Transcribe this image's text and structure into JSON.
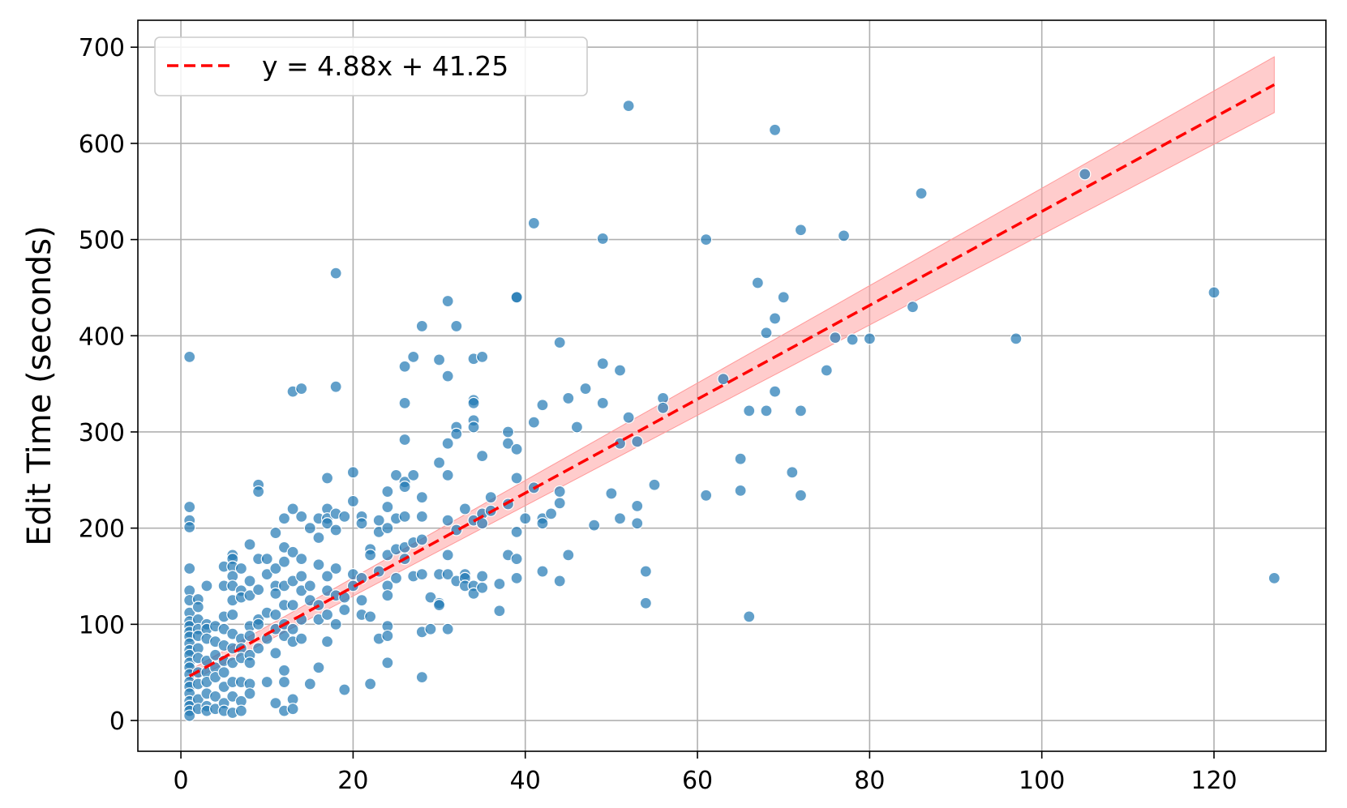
{
  "chart_data": {
    "type": "scatter",
    "title": "",
    "xlabel": "",
    "ylabel": "Edit Time (seconds)",
    "xlim": [
      -5,
      133
    ],
    "ylim": [
      -32,
      728
    ],
    "xticks": [
      0,
      20,
      40,
      60,
      80,
      100,
      120
    ],
    "yticks": [
      0,
      100,
      200,
      300,
      400,
      500,
      600,
      700
    ],
    "grid": true,
    "legend_position": "top-left",
    "colors": {
      "points": "#1f77b4",
      "fit_line": "#ff0000",
      "band": "#ff9999",
      "grid": "#b0b0b0"
    },
    "fit": {
      "label": "y = 4.88x + 41.25",
      "slope": 4.88,
      "intercept": 41.25,
      "x_range": [
        1,
        127
      ],
      "band_halfwidth_start": 6,
      "band_halfwidth_end": 29
    },
    "points": [
      [
        1,
        378
      ],
      [
        1,
        222
      ],
      [
        1,
        208
      ],
      [
        1,
        201
      ],
      [
        1,
        158
      ],
      [
        1,
        135
      ],
      [
        1,
        125
      ],
      [
        1,
        112
      ],
      [
        1,
        103
      ],
      [
        1,
        98
      ],
      [
        1,
        92
      ],
      [
        1,
        87
      ],
      [
        1,
        80
      ],
      [
        1,
        73
      ],
      [
        1,
        68
      ],
      [
        1,
        60
      ],
      [
        1,
        55
      ],
      [
        1,
        48
      ],
      [
        1,
        40
      ],
      [
        1,
        35
      ],
      [
        1,
        28
      ],
      [
        1,
        20
      ],
      [
        1,
        15
      ],
      [
        1,
        10
      ],
      [
        1,
        5
      ],
      [
        2,
        126
      ],
      [
        2,
        118
      ],
      [
        2,
        105
      ],
      [
        2,
        95
      ],
      [
        2,
        88
      ],
      [
        2,
        75
      ],
      [
        2,
        65
      ],
      [
        2,
        50
      ],
      [
        2,
        38
      ],
      [
        2,
        22
      ],
      [
        2,
        12
      ],
      [
        3,
        140
      ],
      [
        3,
        100
      ],
      [
        3,
        95
      ],
      [
        3,
        85
      ],
      [
        3,
        62
      ],
      [
        3,
        50
      ],
      [
        3,
        40
      ],
      [
        3,
        28
      ],
      [
        3,
        15
      ],
      [
        3,
        10
      ],
      [
        4,
        98
      ],
      [
        4,
        82
      ],
      [
        4,
        68
      ],
      [
        4,
        55
      ],
      [
        4,
        45
      ],
      [
        4,
        25
      ],
      [
        4,
        12
      ],
      [
        5,
        160
      ],
      [
        5,
        140
      ],
      [
        5,
        108
      ],
      [
        5,
        95
      ],
      [
        5,
        78
      ],
      [
        5,
        62
      ],
      [
        5,
        50
      ],
      [
        5,
        35
      ],
      [
        5,
        18
      ],
      [
        5,
        10
      ],
      [
        6,
        172
      ],
      [
        6,
        168
      ],
      [
        6,
        160
      ],
      [
        6,
        150
      ],
      [
        6,
        140
      ],
      [
        6,
        125
      ],
      [
        6,
        110
      ],
      [
        6,
        90
      ],
      [
        6,
        75
      ],
      [
        6,
        60
      ],
      [
        6,
        40
      ],
      [
        6,
        25
      ],
      [
        6,
        8
      ],
      [
        7,
        158
      ],
      [
        7,
        135
      ],
      [
        7,
        128
      ],
      [
        7,
        85
      ],
      [
        7,
        75
      ],
      [
        7,
        65
      ],
      [
        7,
        40
      ],
      [
        7,
        20
      ],
      [
        7,
        10
      ],
      [
        8,
        183
      ],
      [
        8,
        145
      ],
      [
        8,
        130
      ],
      [
        8,
        98
      ],
      [
        8,
        88
      ],
      [
        8,
        68
      ],
      [
        8,
        60
      ],
      [
        8,
        38
      ],
      [
        8,
        28
      ],
      [
        9,
        245
      ],
      [
        9,
        238
      ],
      [
        9,
        168
      ],
      [
        9,
        136
      ],
      [
        9,
        105
      ],
      [
        9,
        100
      ],
      [
        9,
        75
      ],
      [
        10,
        168
      ],
      [
        10,
        152
      ],
      [
        10,
        112
      ],
      [
        10,
        85
      ],
      [
        10,
        40
      ],
      [
        11,
        195
      ],
      [
        11,
        158
      ],
      [
        11,
        140
      ],
      [
        11,
        132
      ],
      [
        11,
        110
      ],
      [
        11,
        95
      ],
      [
        11,
        70
      ],
      [
        11,
        18
      ],
      [
        12,
        210
      ],
      [
        12,
        180
      ],
      [
        12,
        165
      ],
      [
        12,
        140
      ],
      [
        12,
        120
      ],
      [
        12,
        100
      ],
      [
        12,
        88
      ],
      [
        12,
        52
      ],
      [
        12,
        40
      ],
      [
        12,
        10
      ],
      [
        13,
        342
      ],
      [
        13,
        220
      ],
      [
        13,
        175
      ],
      [
        13,
        145
      ],
      [
        13,
        120
      ],
      [
        13,
        95
      ],
      [
        13,
        82
      ],
      [
        13,
        22
      ],
      [
        13,
        12
      ],
      [
        14,
        345
      ],
      [
        14,
        212
      ],
      [
        14,
        168
      ],
      [
        14,
        150
      ],
      [
        14,
        135
      ],
      [
        14,
        105
      ],
      [
        14,
        85
      ],
      [
        15,
        200
      ],
      [
        15,
        140
      ],
      [
        15,
        125
      ],
      [
        15,
        38
      ],
      [
        16,
        210
      ],
      [
        16,
        190
      ],
      [
        16,
        162
      ],
      [
        16,
        120
      ],
      [
        16,
        105
      ],
      [
        16,
        55
      ],
      [
        17,
        252
      ],
      [
        17,
        220
      ],
      [
        17,
        210
      ],
      [
        17,
        205
      ],
      [
        17,
        150
      ],
      [
        17,
        135
      ],
      [
        17,
        110
      ],
      [
        17,
        82
      ],
      [
        18,
        465
      ],
      [
        18,
        347
      ],
      [
        18,
        215
      ],
      [
        18,
        198
      ],
      [
        18,
        158
      ],
      [
        18,
        130
      ],
      [
        18,
        100
      ],
      [
        19,
        212
      ],
      [
        19,
        128
      ],
      [
        19,
        115
      ],
      [
        19,
        32
      ],
      [
        20,
        258
      ],
      [
        20,
        228
      ],
      [
        20,
        152
      ],
      [
        20,
        140
      ],
      [
        21,
        212
      ],
      [
        21,
        205
      ],
      [
        21,
        148
      ],
      [
        21,
        125
      ],
      [
        21,
        110
      ],
      [
        22,
        178
      ],
      [
        22,
        172
      ],
      [
        22,
        108
      ],
      [
        22,
        38
      ],
      [
        23,
        208
      ],
      [
        23,
        196
      ],
      [
        23,
        155
      ],
      [
        23,
        85
      ],
      [
        24,
        238
      ],
      [
        24,
        222
      ],
      [
        24,
        200
      ],
      [
        24,
        172
      ],
      [
        24,
        140
      ],
      [
        24,
        130
      ],
      [
        24,
        98
      ],
      [
        24,
        88
      ],
      [
        24,
        60
      ],
      [
        25,
        255
      ],
      [
        25,
        210
      ],
      [
        25,
        178
      ],
      [
        25,
        148
      ],
      [
        26,
        368
      ],
      [
        26,
        330
      ],
      [
        26,
        292
      ],
      [
        26,
        248
      ],
      [
        26,
        243
      ],
      [
        26,
        212
      ],
      [
        26,
        180
      ],
      [
        26,
        168
      ],
      [
        27,
        378
      ],
      [
        27,
        255
      ],
      [
        27,
        185
      ],
      [
        27,
        150
      ],
      [
        28,
        410
      ],
      [
        28,
        232
      ],
      [
        28,
        212
      ],
      [
        28,
        188
      ],
      [
        28,
        152
      ],
      [
        28,
        92
      ],
      [
        28,
        45
      ],
      [
        29,
        128
      ],
      [
        29,
        95
      ],
      [
        30,
        375
      ],
      [
        30,
        268
      ],
      [
        30,
        152
      ],
      [
        30,
        122
      ],
      [
        30,
        120
      ],
      [
        31,
        436
      ],
      [
        31,
        358
      ],
      [
        31,
        288
      ],
      [
        31,
        255
      ],
      [
        31,
        208
      ],
      [
        31,
        172
      ],
      [
        31,
        152
      ],
      [
        31,
        95
      ],
      [
        32,
        410
      ],
      [
        32,
        305
      ],
      [
        32,
        298
      ],
      [
        32,
        198
      ],
      [
        32,
        145
      ],
      [
        33,
        220
      ],
      [
        33,
        152
      ],
      [
        33,
        148
      ],
      [
        33,
        140
      ],
      [
        34,
        376
      ],
      [
        34,
        333
      ],
      [
        34,
        330
      ],
      [
        34,
        312
      ],
      [
        34,
        305
      ],
      [
        34,
        208
      ],
      [
        34,
        140
      ],
      [
        34,
        132
      ],
      [
        35,
        378
      ],
      [
        35,
        275
      ],
      [
        35,
        215
      ],
      [
        35,
        205
      ],
      [
        35,
        150
      ],
      [
        35,
        138
      ],
      [
        36,
        232
      ],
      [
        36,
        218
      ],
      [
        37,
        142
      ],
      [
        37,
        114
      ],
      [
        38,
        300
      ],
      [
        38,
        288
      ],
      [
        38,
        225
      ],
      [
        38,
        172
      ],
      [
        39,
        440
      ],
      [
        39,
        440
      ],
      [
        39,
        282
      ],
      [
        39,
        252
      ],
      [
        39,
        196
      ],
      [
        39,
        168
      ],
      [
        39,
        148
      ],
      [
        40,
        210
      ],
      [
        41,
        517
      ],
      [
        41,
        310
      ],
      [
        41,
        242
      ],
      [
        42,
        328
      ],
      [
        42,
        210
      ],
      [
        42,
        205
      ],
      [
        42,
        155
      ],
      [
        43,
        215
      ],
      [
        44,
        393
      ],
      [
        44,
        238
      ],
      [
        44,
        226
      ],
      [
        44,
        145
      ],
      [
        45,
        335
      ],
      [
        45,
        172
      ],
      [
        46,
        305
      ],
      [
        47,
        345
      ],
      [
        48,
        203
      ],
      [
        49,
        501
      ],
      [
        49,
        371
      ],
      [
        49,
        330
      ],
      [
        50,
        236
      ],
      [
        51,
        364
      ],
      [
        51,
        288
      ],
      [
        51,
        210
      ],
      [
        52,
        639
      ],
      [
        52,
        315
      ],
      [
        53,
        290
      ],
      [
        53,
        223
      ],
      [
        53,
        205
      ],
      [
        54,
        155
      ],
      [
        54,
        122
      ],
      [
        55,
        245
      ],
      [
        56,
        335
      ],
      [
        56,
        325
      ],
      [
        61,
        500
      ],
      [
        61,
        234
      ],
      [
        63,
        355
      ],
      [
        65,
        272
      ],
      [
        65,
        239
      ],
      [
        66,
        322
      ],
      [
        66,
        108
      ],
      [
        67,
        455
      ],
      [
        68,
        403
      ],
      [
        68,
        322
      ],
      [
        69,
        614
      ],
      [
        69,
        418
      ],
      [
        69,
        342
      ],
      [
        70,
        440
      ],
      [
        71,
        258
      ],
      [
        72,
        510
      ],
      [
        72,
        322
      ],
      [
        72,
        234
      ],
      [
        75,
        364
      ],
      [
        76,
        398
      ],
      [
        77,
        504
      ],
      [
        78,
        396
      ],
      [
        80,
        397
      ],
      [
        85,
        430
      ],
      [
        86,
        548
      ],
      [
        97,
        397
      ],
      [
        105,
        568
      ],
      [
        120,
        445
      ],
      [
        127,
        148
      ]
    ]
  }
}
